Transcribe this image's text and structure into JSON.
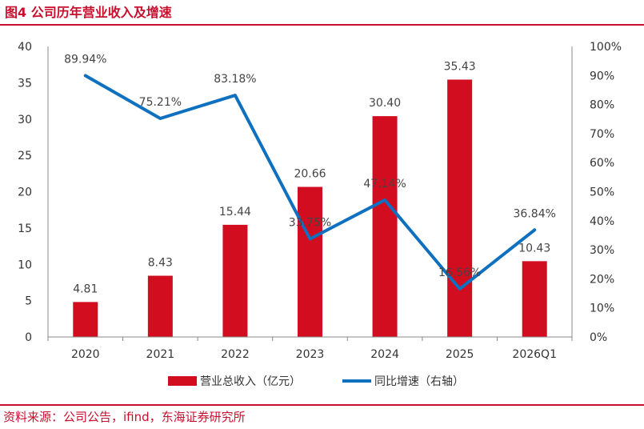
{
  "header": {
    "title": "图4  公司历年营业收入及增速"
  },
  "footer": {
    "source": "资料来源：公司公告，ifind，东海证券研究所"
  },
  "colors": {
    "bar": "#d20d1f",
    "line": "#0e70bf",
    "accent": "#c8102e"
  },
  "chart_data": {
    "type": "bar",
    "categories": [
      "2020",
      "2021",
      "2022",
      "2023",
      "2024",
      "2025",
      "2026Q1"
    ],
    "series": [
      {
        "name": "营业总收入（亿元）",
        "type": "bar",
        "axis": "left",
        "values": [
          4.81,
          8.43,
          15.44,
          20.66,
          30.4,
          35.43,
          10.43
        ],
        "labels": [
          "4.81",
          "8.43",
          "15.44",
          "20.66",
          "30.40",
          "35.43",
          "10.43"
        ]
      },
      {
        "name": "同比增速（右轴）",
        "type": "line",
        "axis": "right",
        "values": [
          89.94,
          75.21,
          83.18,
          33.75,
          47.14,
          16.56,
          36.84
        ],
        "labels": [
          "89.94%",
          "75.21%",
          "83.18%",
          "33.75%",
          "47.14%",
          "16.56%",
          "36.84%"
        ]
      }
    ],
    "y_left": {
      "range": [
        0,
        40
      ],
      "ticks": [
        "0",
        "5",
        "10",
        "15",
        "20",
        "25",
        "30",
        "35",
        "40"
      ]
    },
    "y_right": {
      "range": [
        0,
        100
      ],
      "ticks": [
        "0%",
        "10%",
        "20%",
        "30%",
        "40%",
        "50%",
        "60%",
        "70%",
        "80%",
        "90%",
        "100%"
      ]
    },
    "grid": false,
    "legend": "bottom"
  }
}
